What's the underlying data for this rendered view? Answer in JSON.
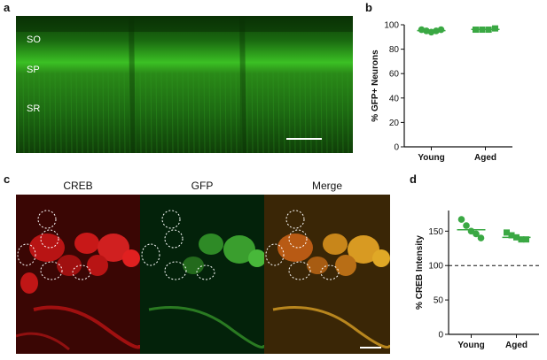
{
  "panels": {
    "a": {
      "letter": "a",
      "layers": [
        "SO",
        "SP",
        "SR"
      ]
    },
    "b": {
      "letter": "b"
    },
    "c": {
      "letter": "c",
      "channels": [
        "CREB",
        "GFP",
        "Merge"
      ]
    },
    "d": {
      "letter": "d"
    }
  },
  "colors": {
    "series_green": "#3aa843",
    "tissue_green": "#1f7a16",
    "creb_red": "#d01818",
    "merge_orange": "#c8861a"
  },
  "chart_data": [
    {
      "panel": "b",
      "type": "scatter",
      "title": "",
      "xlabel": "",
      "ylabel": "% GFP+ Neurons",
      "categories": [
        "Young",
        "Aged"
      ],
      "ylim": [
        0,
        100
      ],
      "yticks": [
        0,
        20,
        40,
        60,
        80,
        100
      ],
      "series": [
        {
          "category": "Young",
          "marker": "circle",
          "values": [
            96,
            95,
            94,
            95,
            96
          ],
          "mean": 95.2
        },
        {
          "category": "Aged",
          "marker": "square",
          "values": [
            96,
            96,
            96,
            97
          ],
          "mean": 96.2
        }
      ],
      "grid": false
    },
    {
      "panel": "d",
      "type": "scatter",
      "title": "",
      "xlabel": "",
      "ylabel": "% CREB Intensity",
      "categories": [
        "Young",
        "Aged"
      ],
      "ylim": [
        0,
        180
      ],
      "yticks": [
        0,
        50,
        100,
        150
      ],
      "reference_line": 100,
      "series": [
        {
          "category": "Young",
          "marker": "circle",
          "values": [
            167,
            158,
            150,
            146,
            140
          ],
          "mean": 152
        },
        {
          "category": "Aged",
          "marker": "square",
          "values": [
            148,
            144,
            141,
            138,
            138
          ],
          "mean": 141
        }
      ],
      "grid": false
    }
  ]
}
